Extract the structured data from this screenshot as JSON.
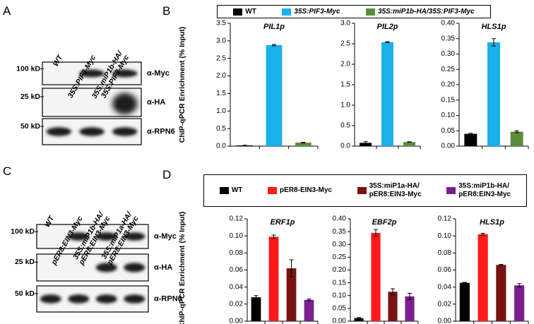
{
  "panel_letters": [
    "A",
    "B",
    "C",
    "D"
  ],
  "blots": [
    {
      "lanes": [
        "WT",
        "35S:PIF3-Myc",
        "35S:miP1b-HA/\n35S:PIF3-Myc"
      ],
      "rows": [
        {
          "marker": "100 kD",
          "antibody": "α-Myc"
        },
        {
          "marker": "25 kD",
          "antibody": "α-HA"
        },
        {
          "marker": "50 kD",
          "antibody": "α-RPN6"
        }
      ]
    },
    {
      "lanes": [
        "WT",
        "pER8:EIN3-Myc",
        "35S:miP1b-HA/\npER8:EIN3-Myc",
        "35S:miP1a-HA/\npER8:EIN3-Myc"
      ],
      "rows": [
        {
          "marker": "100 kD",
          "antibody": "α-Myc"
        },
        {
          "marker": "25 kD",
          "antibody": "α-HA"
        },
        {
          "marker": "50 kD",
          "antibody": "α-RPN6"
        }
      ]
    }
  ],
  "chart_data": [
    {
      "type": "bar",
      "ylabel": "ChIP-qPCR Enrichment (% Input)",
      "series": [
        {
          "name": "WT",
          "color": "#000000",
          "values": [
            0.02,
            0.08,
            0.04
          ],
          "errors": [
            0.005,
            0.03,
            0.002
          ]
        },
        {
          "name": "35S:PIF3-Myc",
          "color": "#1ab0ea",
          "values": [
            2.88,
            2.54,
            0.338
          ],
          "errors": [
            0.02,
            0.01,
            0.012
          ]
        },
        {
          "name": "35S:miP1b-HA/35S:PIF3-Myc",
          "color": "#5b8c3a",
          "values": [
            0.1,
            0.1,
            0.047
          ],
          "errors": [
            0.01,
            0.005,
            0.003
          ]
        }
      ],
      "subplots": [
        {
          "title": "PIL1p",
          "ylim": [
            0,
            3.5
          ],
          "yticks": [
            {
              "value": 0,
              "label": "0.0"
            },
            0.5,
            {
              "value": 1,
              "label": "1.0"
            },
            1.5,
            {
              "value": 2,
              "label": "2.0"
            },
            2.5,
            {
              "value": 3,
              "label": "3.0"
            },
            3.5
          ]
        },
        {
          "title": "PIL2p",
          "ylim": [
            0,
            3
          ],
          "yticks": [
            {
              "value": 0,
              "label": "0.0"
            },
            0.5,
            {
              "value": 1,
              "label": "1.0"
            },
            1.5,
            {
              "value": 2,
              "label": "2.0"
            },
            2.5,
            {
              "value": 3,
              "label": "3.0"
            }
          ]
        },
        {
          "title": "HLS1p",
          "ylim": [
            0,
            0.4
          ],
          "yticks": [
            {
              "value": 0,
              "label": "0.00"
            },
            0.05,
            {
              "value": 0.1,
              "label": "0.10"
            },
            0.15,
            {
              "value": 0.2,
              "label": "0.20"
            },
            0.25,
            {
              "value": 0.3,
              "label": "0.30"
            },
            0.35,
            {
              "value": 0.4,
              "label": "0.40"
            }
          ]
        }
      ]
    },
    {
      "type": "bar",
      "ylabel": "ChIP-qPCR Enrichment (% Input)",
      "series": [
        {
          "name": "WT",
          "color": "#000000",
          "values": [
            0.028,
            0.012,
            0.045
          ],
          "errors": [
            0.002,
            0.002,
            0.0005
          ]
        },
        {
          "name": "pER8-EIN3-Myc",
          "color": "#ff1a1a",
          "values": [
            0.099,
            0.345,
            0.102
          ],
          "errors": [
            0.002,
            0.013,
            0.001
          ]
        },
        {
          "name": "35S:miP1a-HA/\npER8:EIN3-Myc",
          "color": "#7a1212",
          "values": [
            0.062,
            0.115,
            0.066
          ],
          "errors": [
            0.01,
            0.012,
            0.0005
          ]
        },
        {
          "name": "35S:miP1b-HA/\npER8:EIN3-Myc",
          "color": "#7b1f8e",
          "values": [
            0.025,
            0.097,
            0.042
          ],
          "errors": [
            0.001,
            0.012,
            0.002
          ]
        }
      ],
      "subplots": [
        {
          "title": "ERF1p",
          "ylim": [
            0,
            0.12
          ],
          "yticks": [
            {
              "value": 0,
              "label": "0.00"
            },
            0.02,
            0.04,
            0.06,
            0.08,
            {
              "value": 0.1,
              "label": "0.10"
            },
            0.12
          ]
        },
        {
          "title": "EBF2p",
          "ylim": [
            0,
            0.4
          ],
          "yticks": [
            {
              "value": 0,
              "label": "0.00"
            },
            0.05,
            {
              "value": 0.1,
              "label": "0.10"
            },
            0.15,
            {
              "value": 0.2,
              "label": "0.20"
            },
            0.25,
            {
              "value": 0.3,
              "label": "0.30"
            },
            0.35,
            {
              "value": 0.4,
              "label": "0.40"
            }
          ]
        },
        {
          "title": "HLS1p",
          "ylim": [
            0,
            0.12
          ],
          "yticks": [
            {
              "value": 0,
              "label": "0.00"
            },
            0.02,
            0.04,
            0.06,
            0.08,
            {
              "value": 0.1,
              "label": "0.10"
            },
            0.12
          ]
        }
      ]
    }
  ]
}
